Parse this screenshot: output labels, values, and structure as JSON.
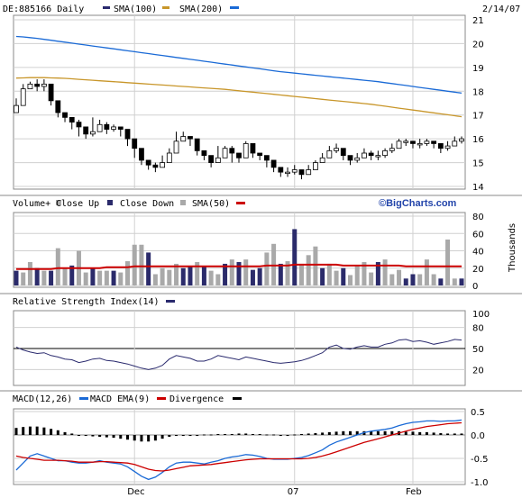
{
  "header": {
    "symbol_label": "DE:885166 Daily",
    "sma100_label": "SMA(100)",
    "sma200_label": "SMA(200)",
    "date": "2/14/07"
  },
  "volume_header": {
    "label": "Volume+",
    "close_up": "Close Up",
    "close_down": "Close Down",
    "sma_label": "SMA(50)",
    "brand": "©BigCharts.com",
    "units": "Thousands"
  },
  "rsi_header": {
    "label": "Relative Strength Index(14)"
  },
  "macd_header": {
    "label": "MACD(12,26)",
    "ema_label": "MACD EMA(9)",
    "div_label": "Divergence"
  },
  "colors": {
    "sma100": "#2a2a6e",
    "sma200": "#c8962a",
    "blue_line": "#1a6ad6",
    "up_vol": "#a9a9a9",
    "down_vol": "#2b2b6b",
    "vol_sma": "#cc0000",
    "macd": "#1a6ad6",
    "macd_ema": "#cc0000",
    "divergence": "#000000",
    "grid": "#d0d0d0"
  },
  "chart_data": [
    {
      "type": "candlestick",
      "ylim": [
        14,
        21
      ],
      "yticks": [
        14,
        15,
        16,
        17,
        18,
        19,
        20,
        21
      ],
      "xticks": [
        "Dec",
        "07",
        "Feb"
      ],
      "grid": true,
      "closes": [
        17.4,
        18.1,
        18.3,
        18.2,
        18.3,
        17.6,
        17.1,
        16.9,
        16.7,
        16.5,
        16.2,
        16.3,
        16.6,
        16.4,
        16.5,
        16.4,
        16.0,
        15.6,
        15.1,
        14.9,
        14.8,
        15.0,
        15.4,
        15.9,
        16.1,
        16.0,
        15.5,
        15.3,
        15.0,
        15.2,
        15.6,
        15.4,
        15.2,
        15.8,
        15.4,
        15.3,
        15.1,
        14.8,
        14.6,
        14.6,
        14.7,
        14.5,
        14.7,
        15.0,
        15.2,
        15.5,
        15.6,
        15.3,
        15.1,
        15.2,
        15.4,
        15.3,
        15.3,
        15.5,
        15.6,
        15.9,
        15.9,
        15.8,
        15.8,
        15.9,
        15.8,
        15.6,
        15.7,
        15.9,
        16.0
      ],
      "highs": [
        17.7,
        18.3,
        18.4,
        18.5,
        18.5,
        17.8,
        17.3,
        17.1,
        16.9,
        16.8,
        16.5,
        16.9,
        16.8,
        16.7,
        16.6,
        16.5,
        16.2,
        15.8,
        15.4,
        15.1,
        15.0,
        15.3,
        15.6,
        16.3,
        16.3,
        16.1,
        15.9,
        15.5,
        15.3,
        15.7,
        15.7,
        15.7,
        15.4,
        15.9,
        15.6,
        15.4,
        15.3,
        15.0,
        14.8,
        14.8,
        14.9,
        14.7,
        14.9,
        15.1,
        15.4,
        15.7,
        15.8,
        15.5,
        15.3,
        15.4,
        15.6,
        15.5,
        15.5,
        15.6,
        15.8,
        16.0,
        16.0,
        15.9,
        16.0,
        16.0,
        15.9,
        15.8,
        15.9,
        16.1,
        16.1
      ],
      "lows": [
        17.2,
        17.9,
        18.1,
        18.0,
        18.0,
        17.4,
        16.9,
        16.7,
        16.4,
        16.1,
        16.0,
        16.1,
        16.3,
        16.2,
        16.3,
        16.1,
        15.7,
        15.2,
        14.9,
        14.7,
        14.6,
        14.8,
        15.1,
        15.6,
        15.9,
        15.7,
        15.3,
        15.1,
        14.8,
        15.0,
        15.3,
        15.0,
        15.0,
        15.5,
        15.2,
        15.1,
        14.8,
        14.6,
        14.4,
        14.4,
        14.5,
        14.3,
        14.5,
        14.8,
        15.0,
        15.3,
        15.4,
        15.1,
        14.9,
        15.0,
        15.2,
        15.1,
        15.1,
        15.2,
        15.4,
        15.7,
        15.7,
        15.6,
        15.6,
        15.7,
        15.6,
        15.4,
        15.5,
        15.7,
        15.8
      ],
      "sma100": [
        20.3,
        20.28,
        20.25,
        20.22,
        20.18,
        20.14,
        20.1,
        20.06,
        20.02,
        19.98,
        19.94,
        19.9,
        19.86,
        19.82,
        19.78,
        19.74,
        19.7,
        19.66,
        19.62,
        19.58,
        19.54,
        19.5,
        19.46,
        19.42,
        19.38,
        19.34,
        19.3,
        19.26,
        19.22,
        19.18,
        19.14,
        19.1,
        19.06,
        19.02,
        18.98,
        18.94,
        18.9,
        18.86,
        18.82,
        18.79,
        18.76,
        18.73,
        18.7,
        18.67,
        18.64,
        18.61,
        18.58,
        18.55,
        18.52,
        18.49,
        18.46,
        18.43,
        18.4,
        18.36,
        18.32,
        18.28,
        18.24,
        18.2,
        18.16,
        18.12,
        18.08,
        18.04,
        18.0,
        17.96,
        17.92
      ],
      "sma200": [
        18.55,
        18.56,
        18.57,
        18.57,
        18.57,
        18.56,
        18.55,
        18.54,
        18.52,
        18.5,
        18.48,
        18.46,
        18.44,
        18.42,
        18.4,
        18.38,
        18.36,
        18.34,
        18.32,
        18.3,
        18.28,
        18.26,
        18.24,
        18.22,
        18.2,
        18.18,
        18.16,
        18.14,
        18.12,
        18.1,
        18.08,
        18.05,
        18.02,
        17.99,
        17.96,
        17.93,
        17.9,
        17.87,
        17.84,
        17.81,
        17.78,
        17.75,
        17.72,
        17.69,
        17.66,
        17.63,
        17.6,
        17.57,
        17.54,
        17.51,
        17.48,
        17.45,
        17.41,
        17.37,
        17.33,
        17.29,
        17.25,
        17.21,
        17.17,
        17.13,
        17.09,
        17.05,
        17.01,
        16.97,
        16.93
      ]
    },
    {
      "type": "bar",
      "ylim": [
        0,
        80
      ],
      "yticks": [
        0,
        20,
        40,
        60,
        80
      ],
      "up": [
        0,
        1,
        1,
        0,
        1,
        0,
        1,
        1,
        0,
        1,
        1,
        0,
        1,
        1,
        0,
        1,
        1,
        1,
        1,
        0,
        1,
        1,
        1,
        1,
        0,
        0,
        1,
        0,
        1,
        1,
        0,
        1,
        0,
        1,
        0,
        0,
        1,
        1,
        0,
        1,
        0,
        1,
        1,
        1,
        0,
        1,
        1,
        0,
        1,
        1,
        1,
        1,
        0,
        1,
        1,
        1,
        0,
        0,
        1,
        1,
        1,
        0,
        1,
        1,
        0
      ],
      "values": [
        17,
        15,
        27,
        20,
        17,
        17,
        43,
        20,
        23,
        40,
        15,
        20,
        17,
        17,
        17,
        15,
        28,
        47,
        47,
        38,
        13,
        20,
        18,
        25,
        20,
        22,
        27,
        22,
        17,
        13,
        25,
        30,
        27,
        30,
        18,
        20,
        38,
        48,
        25,
        28,
        65,
        25,
        35,
        45,
        20,
        25,
        17,
        20,
        12,
        22,
        27,
        15,
        27,
        30,
        13,
        18,
        8,
        13,
        13,
        30,
        13,
        8,
        53,
        8,
        8
      ],
      "sma50": [
        19,
        19,
        19,
        19,
        19,
        19,
        20,
        20,
        20,
        20,
        20,
        20,
        20,
        21,
        21,
        21,
        21,
        22,
        22,
        22,
        22,
        22,
        22,
        22,
        22,
        22,
        22,
        22,
        22,
        22,
        22,
        22,
        22,
        22,
        22,
        22,
        23,
        23,
        23,
        23,
        24,
        24,
        24,
        24,
        24,
        24,
        24,
        23,
        23,
        23,
        23,
        23,
        23,
        23,
        23,
        23,
        22,
        22,
        22,
        22,
        22,
        22,
        22,
        22,
        22
      ]
    },
    {
      "type": "line",
      "ylim": [
        0,
        100
      ],
      "yticks": [
        20,
        50,
        80,
        100
      ],
      "values": [
        52,
        48,
        45,
        43,
        44,
        40,
        38,
        35,
        34,
        30,
        32,
        35,
        36,
        33,
        32,
        30,
        28,
        25,
        22,
        20,
        22,
        26,
        35,
        40,
        38,
        36,
        32,
        32,
        35,
        40,
        38,
        36,
        34,
        38,
        36,
        34,
        32,
        30,
        29,
        30,
        31,
        33,
        36,
        40,
        44,
        52,
        55,
        50,
        49,
        52,
        54,
        52,
        52,
        56,
        58,
        62,
        63,
        60,
        61,
        59,
        56,
        58,
        60,
        63,
        62
      ]
    },
    {
      "type": "line",
      "ylim": [
        -1.0,
        0.5
      ],
      "yticks": [
        -1.0,
        -0.5,
        0.0,
        0.5
      ],
      "xticks": [
        "Dec",
        "07",
        "Feb"
      ],
      "macd": [
        -0.75,
        -0.6,
        -0.45,
        -0.4,
        -0.45,
        -0.5,
        -0.55,
        -0.55,
        -0.58,
        -0.6,
        -0.6,
        -0.58,
        -0.55,
        -0.58,
        -0.6,
        -0.62,
        -0.68,
        -0.78,
        -0.88,
        -0.95,
        -0.9,
        -0.8,
        -0.68,
        -0.6,
        -0.58,
        -0.58,
        -0.6,
        -0.62,
        -0.58,
        -0.55,
        -0.5,
        -0.47,
        -0.45,
        -0.42,
        -0.43,
        -0.46,
        -0.5,
        -0.52,
        -0.52,
        -0.52,
        -0.5,
        -0.48,
        -0.44,
        -0.38,
        -0.32,
        -0.22,
        -0.15,
        -0.1,
        -0.05,
        0.0,
        0.05,
        0.08,
        0.1,
        0.12,
        0.15,
        0.2,
        0.24,
        0.27,
        0.28,
        0.3,
        0.3,
        0.29,
        0.3,
        0.3,
        0.32
      ],
      "ema": [
        -0.45,
        -0.48,
        -0.5,
        -0.52,
        -0.54,
        -0.54,
        -0.54,
        -0.55,
        -0.56,
        -0.58,
        -0.58,
        -0.58,
        -0.57,
        -0.57,
        -0.58,
        -0.59,
        -0.6,
        -0.63,
        -0.68,
        -0.73,
        -0.76,
        -0.77,
        -0.75,
        -0.72,
        -0.69,
        -0.66,
        -0.65,
        -0.64,
        -0.63,
        -0.61,
        -0.59,
        -0.57,
        -0.55,
        -0.53,
        -0.52,
        -0.51,
        -0.51,
        -0.51,
        -0.51,
        -0.51,
        -0.51,
        -0.51,
        -0.5,
        -0.48,
        -0.45,
        -0.41,
        -0.36,
        -0.31,
        -0.26,
        -0.21,
        -0.16,
        -0.12,
        -0.08,
        -0.04,
        0.0,
        0.04,
        0.08,
        0.12,
        0.15,
        0.18,
        0.2,
        0.22,
        0.24,
        0.25,
        0.26
      ],
      "divergence": [
        0.15,
        0.17,
        0.18,
        0.18,
        0.16,
        0.13,
        0.1,
        0.06,
        0.03,
        0.0,
        -0.02,
        -0.03,
        -0.04,
        -0.05,
        -0.06,
        -0.08,
        -0.1,
        -0.12,
        -0.14,
        -0.14,
        -0.12,
        -0.08,
        -0.04,
        -0.01,
        0.0,
        0.0,
        0.0,
        0.01,
        0.01,
        0.02,
        0.02,
        0.02,
        0.03,
        0.03,
        0.02,
        0.02,
        0.01,
        0.01,
        0.0,
        0.0,
        0.01,
        0.02,
        0.03,
        0.04,
        0.05,
        0.06,
        0.07,
        0.08,
        0.08,
        0.08,
        0.08,
        0.08,
        0.08,
        0.08,
        0.08,
        0.08,
        0.07,
        0.07,
        0.06,
        0.06,
        0.05,
        0.04,
        0.03,
        0.03,
        0.03
      ]
    }
  ]
}
